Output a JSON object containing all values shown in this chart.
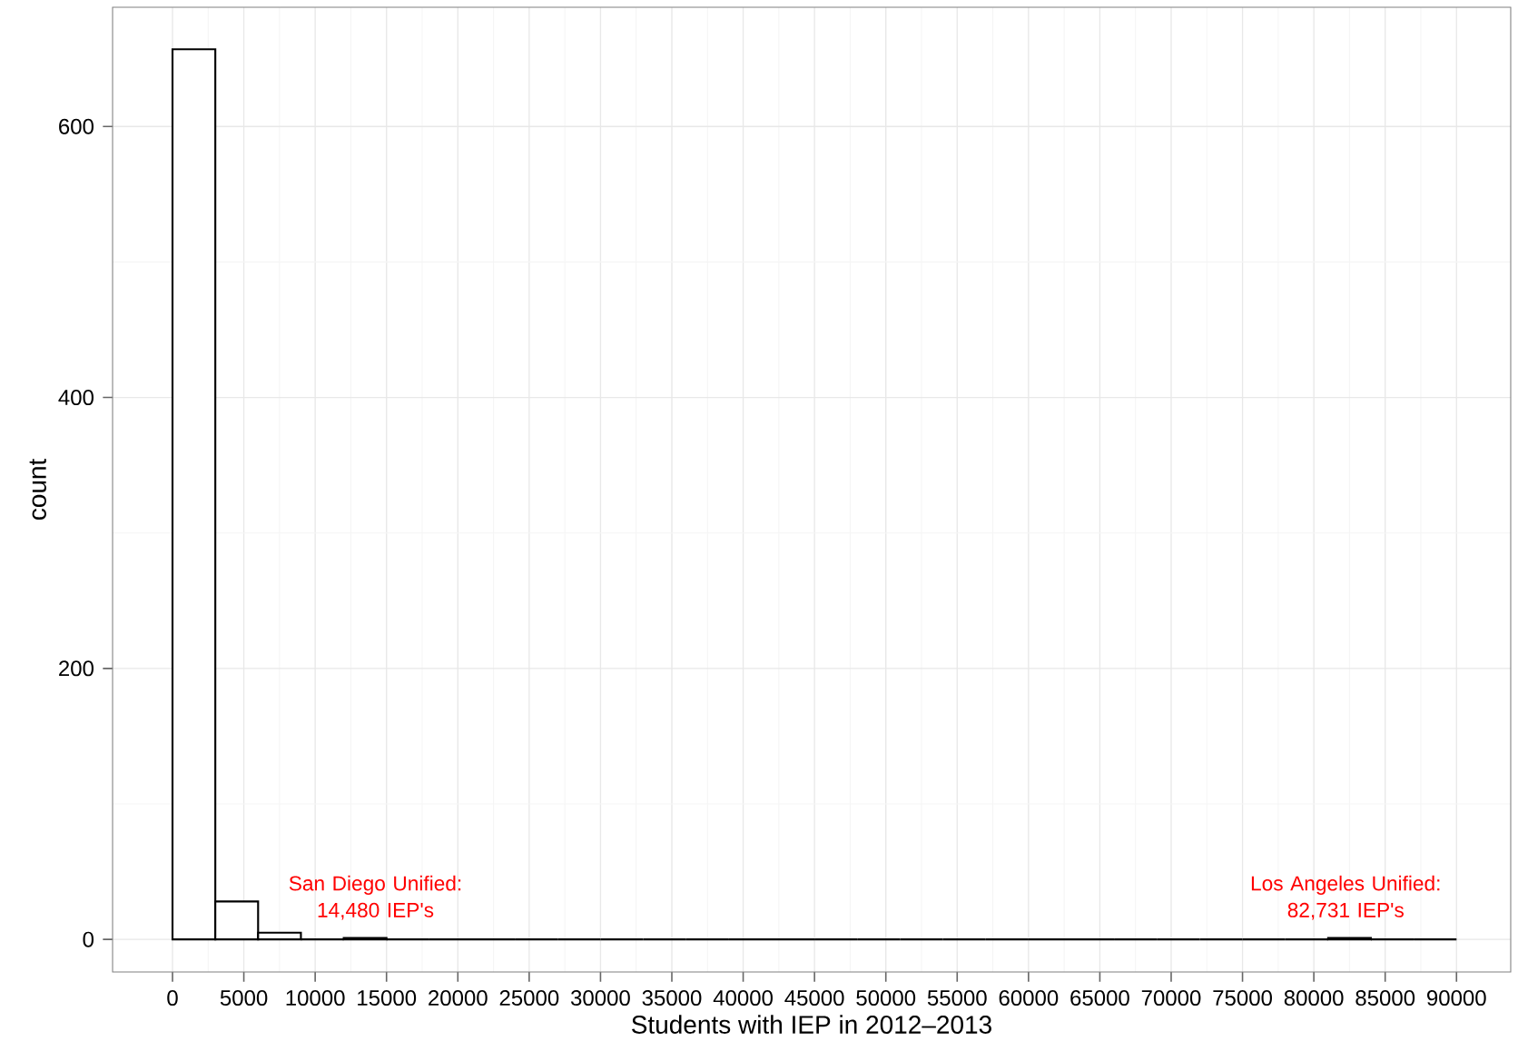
{
  "chart_data": {
    "type": "histogram",
    "xlabel": "Students with IEP in 2012–2013",
    "ylabel": "count",
    "bins": [
      0,
      3000,
      6000,
      9000,
      12000,
      15000,
      18000,
      21000,
      24000,
      27000,
      30000,
      33000,
      36000,
      39000,
      42000,
      45000,
      48000,
      51000,
      54000,
      57000,
      60000,
      63000,
      66000,
      69000,
      72000,
      75000,
      78000,
      81000,
      84000,
      87000,
      90000
    ],
    "values": [
      657,
      28,
      5,
      0,
      1,
      0,
      0,
      0,
      0,
      0,
      0,
      0,
      0,
      0,
      0,
      0,
      0,
      0,
      0,
      0,
      0,
      0,
      0,
      0,
      0,
      0,
      0,
      1,
      0,
      0
    ],
    "xlim": [
      -4200,
      93800
    ],
    "ylim": [
      -24,
      688
    ],
    "xticks": [
      0,
      5000,
      10000,
      15000,
      20000,
      25000,
      30000,
      35000,
      40000,
      45000,
      50000,
      55000,
      60000,
      65000,
      70000,
      75000,
      80000,
      85000,
      90000
    ],
    "yticks": [
      0,
      200,
      400,
      600
    ],
    "grid": true,
    "annotations": [
      "San Diego Unified: 14,480 IEP's",
      "Los Angeles Unified: 82,731 IEP's"
    ]
  }
}
